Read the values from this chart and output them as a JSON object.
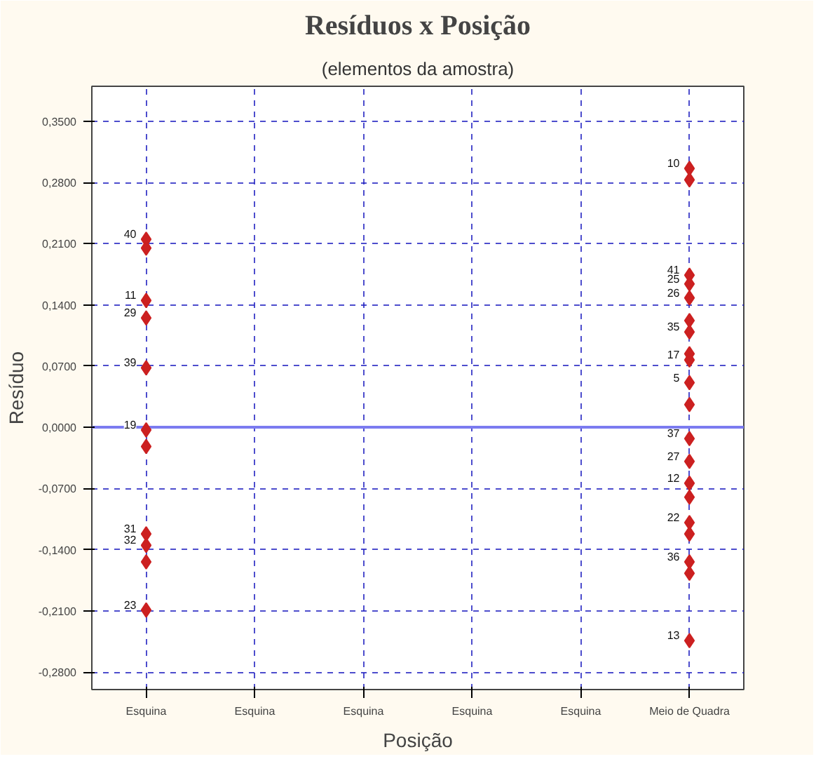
{
  "chart_data": {
    "type": "scatter",
    "title": "Resíduos x Posição",
    "subtitle": "(elementos da amostra)",
    "xlabel": "Posição",
    "ylabel": "Resíduo",
    "categories": [
      "Esquina",
      "Esquina",
      "Esquina",
      "Esquina",
      "Esquina",
      "Meio de Quadra"
    ],
    "series": [
      {
        "color": "#cc2020",
        "x": [
          "Esquina",
          "Esquina",
          "Esquina",
          "Esquina",
          "Esquina",
          "Esquina",
          "Esquina",
          "Esquina",
          "Esquina",
          "Esquina",
          "Esquina",
          "Meio de Quadra",
          "Meio de Quadra",
          "Meio de Quadra",
          "Meio de Quadra",
          "Meio de Quadra",
          "Meio de Quadra",
          "Meio de Quadra",
          "Meio de Quadra",
          "Meio de Quadra",
          "Meio de Quadra",
          "Meio de Quadra",
          "Meio de Quadra",
          "Meio de Quadra",
          "Meio de Quadra",
          "Meio de Quadra",
          "Meio de Quadra",
          "Meio de Quadra",
          "Meio de Quadra",
          "Meio de Quadra",
          "Meio de Quadra"
        ],
        "values": [
          0.215,
          0.205,
          0.145,
          0.125,
          0.068,
          -0.003,
          -0.022,
          -0.122,
          -0.135,
          -0.154,
          -0.209,
          0.296,
          0.283,
          0.174,
          0.164,
          0.148,
          0.122,
          0.109,
          0.084,
          0.077,
          0.051,
          0.026,
          -0.013,
          -0.039,
          -0.064,
          -0.08,
          -0.109,
          -0.122,
          -0.154,
          -0.167,
          -0.244
        ]
      }
    ],
    "marker": "diamond",
    "grid": true,
    "ylim": [
      -0.3,
      0.39
    ],
    "yticks": [
      {
        "value": 0.35,
        "label": "0,3500"
      },
      {
        "value": 0.28,
        "label": "0,2800"
      },
      {
        "value": 0.21,
        "label": "0,2100"
      },
      {
        "value": 0.14,
        "label": "0,1400"
      },
      {
        "value": 0.07,
        "label": "0,0700"
      },
      {
        "value": 0,
        "label": "0,0000"
      },
      {
        "value": -0.07,
        "label": "-0,0700"
      },
      {
        "value": -0.14,
        "label": "-0,1400"
      },
      {
        "value": -0.21,
        "label": "-0,2100"
      },
      {
        "value": -0.28,
        "label": "-0,2800"
      }
    ],
    "ref_lines": [
      {
        "axis": "y",
        "value": 0,
        "color": "#7b7bf0"
      }
    ],
    "annotations": [
      {
        "text": "40",
        "x": "Esquina",
        "y": 0.215
      },
      {
        "text": "11",
        "x": "Esquina",
        "y": 0.145
      },
      {
        "text": "29",
        "x": "Esquina",
        "y": 0.125
      },
      {
        "text": "39",
        "x": "Esquina",
        "y": 0.068
      },
      {
        "text": "19",
        "x": "Esquina",
        "y": -0.003
      },
      {
        "text": "31",
        "x": "Esquina",
        "y": -0.122
      },
      {
        "text": "32",
        "x": "Esquina",
        "y": -0.135
      },
      {
        "text": "23",
        "x": "Esquina",
        "y": -0.209
      },
      {
        "text": "10",
        "x": "Meio de Quadra",
        "y": 0.296
      },
      {
        "text": "41",
        "x": "Meio de Quadra",
        "y": 0.174
      },
      {
        "text": "25",
        "x": "Meio de Quadra",
        "y": 0.164
      },
      {
        "text": "26",
        "x": "Meio de Quadra",
        "y": 0.148
      },
      {
        "text": "35",
        "x": "Meio de Quadra",
        "y": 0.109
      },
      {
        "text": "17",
        "x": "Meio de Quadra",
        "y": 0.077
      },
      {
        "text": "5",
        "x": "Meio de Quadra",
        "y": 0.051
      },
      {
        "text": "37",
        "x": "Meio de Quadra",
        "y": -0.013
      },
      {
        "text": "27",
        "x": "Meio de Quadra",
        "y": -0.039
      },
      {
        "text": "12",
        "x": "Meio de Quadra",
        "y": -0.064
      },
      {
        "text": "22",
        "x": "Meio de Quadra",
        "y": -0.109
      },
      {
        "text": "36",
        "x": "Meio de Quadra",
        "y": -0.154
      },
      {
        "text": "13",
        "x": "Meio de Quadra",
        "y": -0.244
      }
    ]
  }
}
